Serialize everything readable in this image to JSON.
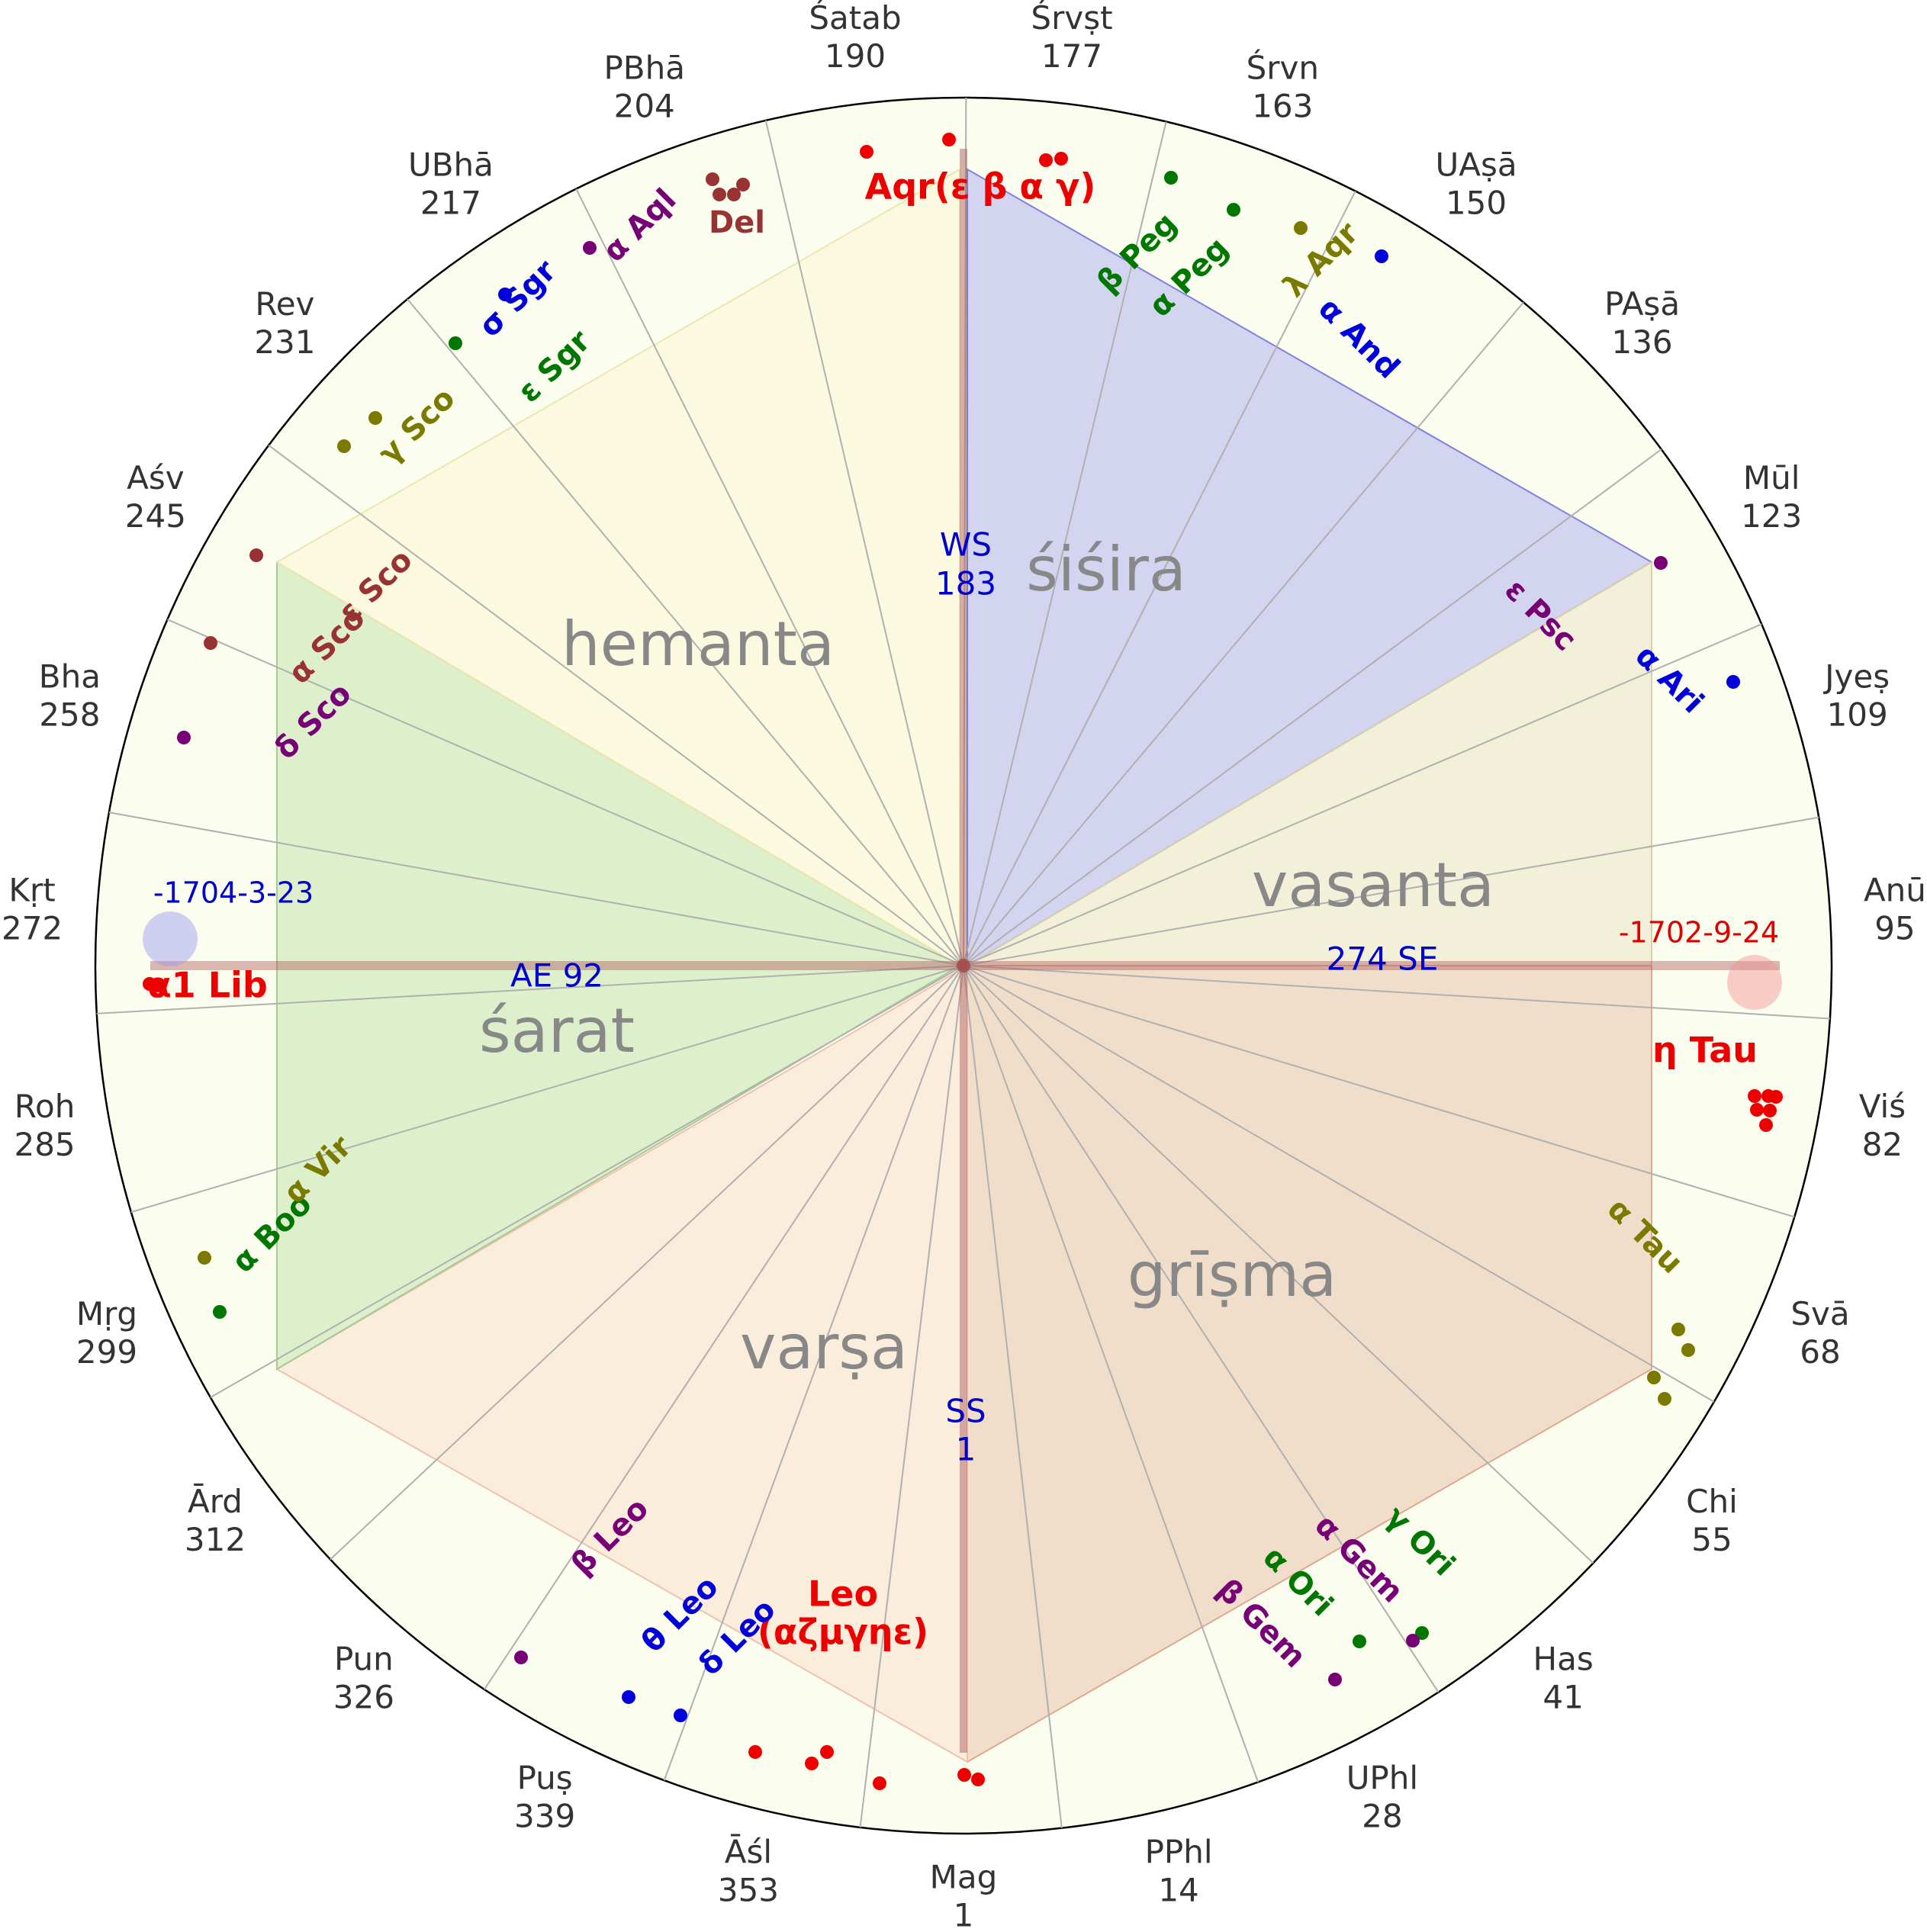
{
  "nakshatras": [
    {
      "name": "Mag",
      "deg": "1"
    },
    {
      "name": "PPhl",
      "deg": "14"
    },
    {
      "name": "UPhl",
      "deg": "28"
    },
    {
      "name": "Has",
      "deg": "41"
    },
    {
      "name": "Chi",
      "deg": "55"
    },
    {
      "name": "Svā",
      "deg": "68"
    },
    {
      "name": "Viś",
      "deg": "82"
    },
    {
      "name": "Anū",
      "deg": "95"
    },
    {
      "name": "Jyeṣ",
      "deg": "109"
    },
    {
      "name": "Mūl",
      "deg": "123"
    },
    {
      "name": "PAṣā",
      "deg": "136"
    },
    {
      "name": "UAṣā",
      "deg": "150"
    },
    {
      "name": "Śrvn",
      "deg": "163"
    },
    {
      "name": "Śrvṣt",
      "deg": "177"
    },
    {
      "name": "Śatab",
      "deg": "190"
    },
    {
      "name": "PBhā",
      "deg": "204"
    },
    {
      "name": "UBhā",
      "deg": "217"
    },
    {
      "name": "Rev",
      "deg": "231"
    },
    {
      "name": "Aśv",
      "deg": "245"
    },
    {
      "name": "Bha",
      "deg": "258"
    },
    {
      "name": "Kṛt",
      "deg": "272"
    },
    {
      "name": "Roh",
      "deg": "285"
    },
    {
      "name": "Mṛg",
      "deg": "299"
    },
    {
      "name": "Ārd",
      "deg": "312"
    },
    {
      "name": "Pun",
      "deg": "326"
    },
    {
      "name": "Puṣ",
      "deg": "339"
    },
    {
      "name": "Āśl",
      "deg": "353"
    }
  ],
  "seasons": [
    {
      "name": "śiśira",
      "fill": "#b3b3f0",
      "stroke": "#8080e0"
    },
    {
      "name": "vasanta",
      "fill": "#ede5c8",
      "stroke": "#d8cfa8"
    },
    {
      "name": "grīṣma",
      "fill": "#e8c4ae",
      "stroke": "#e0a890"
    },
    {
      "name": "varṣa",
      "fill": "#fbe0cc",
      "stroke": "#f0c0b0"
    },
    {
      "name": "śarat",
      "fill": "#c6e3b0",
      "stroke": "#a8c898"
    },
    {
      "name": "hemanta",
      "fill": "#fbf6d4",
      "stroke": "#eee6b0"
    }
  ],
  "markers": [
    {
      "code": "SS",
      "value": "1"
    },
    {
      "code": "WS",
      "value": "183"
    },
    {
      "code": "AE 92"
    },
    {
      "code": "274 SE"
    }
  ],
  "dates": {
    "left": "-1704-3-23",
    "right": "-1702-9-24"
  },
  "stars": [
    {
      "label": "Aqr(ε β α γ)",
      "color": "#ee0000"
    },
    {
      "label": "β Peg",
      "color": "#007700"
    },
    {
      "label": "α Peg",
      "color": "#007700"
    },
    {
      "label": "λ Aqr",
      "color": "#7a7a00"
    },
    {
      "label": "α And",
      "color": "#0000dd"
    },
    {
      "label": "ε Psc",
      "color": "#770077"
    },
    {
      "label": "α Ari",
      "color": "#0000dd"
    },
    {
      "label": "η Tau",
      "color": "#ee0000"
    },
    {
      "label": "α Tau",
      "color": "#7a7a00"
    },
    {
      "label": "γ Ori",
      "color": "#007700"
    },
    {
      "label": "α Gem",
      "color": "#770077"
    },
    {
      "label": "α Ori",
      "color": "#007700"
    },
    {
      "label": "β Gem",
      "color": "#770077"
    },
    {
      "label": "Leo",
      "label2": "(αζμγηε)",
      "color": "#ee0000"
    },
    {
      "label": "δ Leo",
      "color": "#0000dd"
    },
    {
      "label": "θ Leo",
      "color": "#0000dd"
    },
    {
      "label": "β Leo",
      "color": "#770077"
    },
    {
      "label": "α Boo",
      "color": "#007700"
    },
    {
      "label": "α Vir",
      "color": "#7a7a00"
    },
    {
      "label": "α1 Lib",
      "color": "#ee0000"
    },
    {
      "label": "δ Sco",
      "color": "#770077"
    },
    {
      "label": "α Sco",
      "color": "#993333"
    },
    {
      "label": "ε Sco",
      "color": "#993333"
    },
    {
      "label": "γ Sco",
      "color": "#7a7a00"
    },
    {
      "label": "ε Sgr",
      "color": "#007700"
    },
    {
      "label": "σ Sgr",
      "color": "#0000dd"
    },
    {
      "label": "α Aql",
      "color": "#770077"
    },
    {
      "label": "Del",
      "color": "#993333"
    }
  ],
  "colors": {
    "disc": "#fbfdee",
    "spoke": "#b0b0b0",
    "axis": "#c08080",
    "marker": "#0000cc",
    "label": "#333333",
    "season_text": "#888888"
  }
}
